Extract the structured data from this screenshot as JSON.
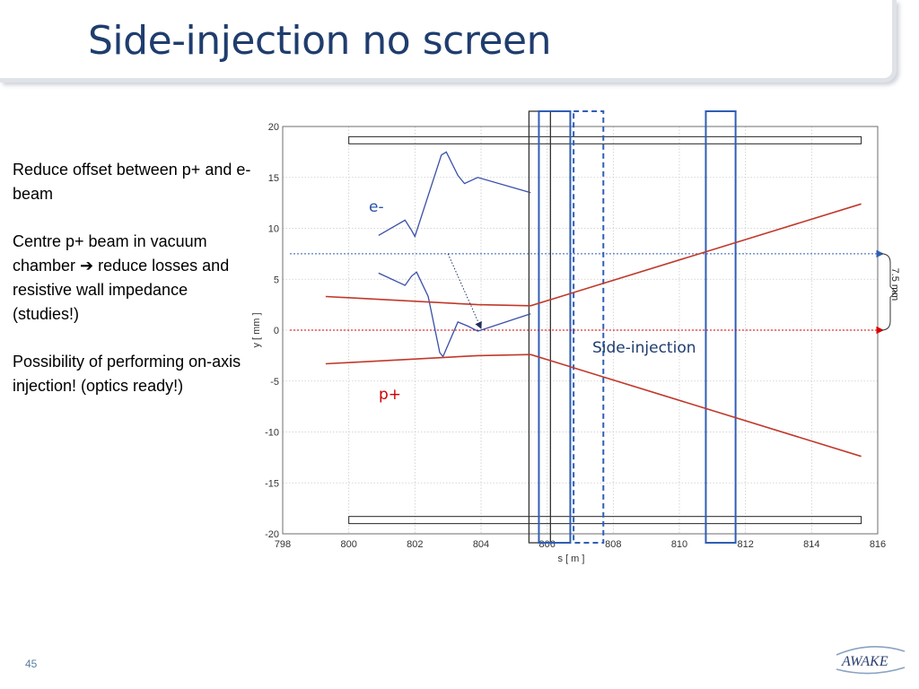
{
  "slide": {
    "title": "Side-injection no screen",
    "page_number": "45",
    "logo_text": "AWAKE"
  },
  "bullets": [
    "Reduce offset between p+ and e- beam",
    "Centre p+ beam in vacuum chamber ➔ reduce losses and resistive wall impedance (studies!)",
    "Possibility of performing on-axis injection! (optics ready!)"
  ],
  "colors": {
    "title": "#1f3d6e",
    "electron": "#3a4fa8",
    "proton": "#c0392b",
    "electron_label": "#2a52a6",
    "proton_label": "#cc0000",
    "marker_blue": "#2f5eb5",
    "marker_black": "#333333"
  },
  "chart_data": {
    "type": "line",
    "xlabel": "s [ m ]",
    "ylabel": "y [ mm ]",
    "xlim": [
      798,
      816
    ],
    "ylim": [
      -20,
      20
    ],
    "xticks": [
      798,
      800,
      802,
      804,
      806,
      808,
      810,
      812,
      814,
      816
    ],
    "yticks": [
      20,
      15,
      10,
      5,
      0,
      -5,
      -10,
      -15,
      -20
    ],
    "grid": true,
    "series": [
      {
        "name": "e-",
        "color": "#3a4fa8",
        "points": [
          [
            800.9,
            9.3
          ],
          [
            801.7,
            10.8
          ],
          [
            801.9,
            9.8
          ],
          [
            802.0,
            9.2
          ],
          [
            802.8,
            17.2
          ],
          [
            802.95,
            17.5
          ],
          [
            803.3,
            15.2
          ],
          [
            803.5,
            14.4
          ],
          [
            803.9,
            15.0
          ],
          [
            805.5,
            13.5
          ]
        ]
      },
      {
        "color": "#3a4fa8",
        "points": [
          [
            800.9,
            5.6
          ],
          [
            801.7,
            4.4
          ],
          [
            801.9,
            5.3
          ],
          [
            802.05,
            5.7
          ],
          [
            802.4,
            3.3
          ],
          [
            802.75,
            -2.2
          ],
          [
            802.85,
            -2.6
          ],
          [
            803.3,
            0.8
          ],
          [
            803.6,
            0.4
          ],
          [
            803.9,
            -0.1
          ],
          [
            804.05,
            0.05
          ],
          [
            805.5,
            1.6
          ]
        ]
      },
      {
        "name": "p+",
        "color": "#c0392b",
        "points": [
          [
            799.3,
            3.3
          ],
          [
            803.9,
            2.5
          ],
          [
            805.5,
            2.4
          ],
          [
            815.5,
            12.4
          ]
        ]
      },
      {
        "color": "#c0392b",
        "points": [
          [
            799.3,
            -3.3
          ],
          [
            803.9,
            -2.5
          ],
          [
            805.5,
            -2.4
          ],
          [
            815.5,
            -12.4
          ]
        ]
      }
    ],
    "reference_lines": [
      {
        "y": 7.5,
        "color": "#2f5eb5",
        "style": "dotted"
      },
      {
        "y": 0,
        "color": "#dd0000",
        "style": "dotted"
      }
    ],
    "arrow": {
      "from": [
        803.0,
        7.5
      ],
      "to": [
        804.0,
        0.0
      ]
    },
    "dimension": {
      "from": 7.5,
      "to": 0,
      "label": "7.5 mm"
    },
    "chamber_walls": {
      "x1": 800,
      "x2": 815.5,
      "y_top": [
        18.3,
        19.0
      ],
      "y_bottom": [
        -18.3,
        -19.0
      ]
    },
    "markers": [
      {
        "x1": 805.45,
        "x2": 806.1,
        "style": "solid",
        "color": "#333333"
      },
      {
        "x1": 805.75,
        "x2": 806.7,
        "style": "solid",
        "color": "#2f5eb5"
      },
      {
        "x1": 806.8,
        "x2": 807.7,
        "style": "dashed",
        "color": "#2f5eb5"
      },
      {
        "x1": 810.8,
        "x2": 811.7,
        "style": "solid",
        "color": "#2f5eb5"
      }
    ],
    "annotations": {
      "electron_label": "e-",
      "proton_label": "p+",
      "injection_label": "Side-injection"
    }
  }
}
